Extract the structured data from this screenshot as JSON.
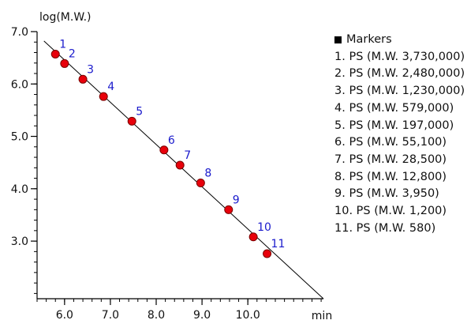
{
  "chart_data": {
    "type": "scatter",
    "ylabel": "log(M.W.)",
    "xlabel": "min",
    "xlim": [
      5.4,
      11.65
    ],
    "ylim": [
      1.9,
      7.0
    ],
    "x_ticks": [
      "6.0",
      "7.0",
      "8.0",
      "9.0",
      "10.0"
    ],
    "y_ticks": [
      "3.0",
      "4.0",
      "5.0",
      "6.0",
      "7.0"
    ],
    "x_tick_values": [
      6,
      7,
      8,
      9,
      10
    ],
    "y_tick_values": [
      3,
      4,
      5,
      6,
      7
    ],
    "x_minor_step": 0.2,
    "y_minor_step": 0.2,
    "points": [
      {
        "label": "1",
        "x": 5.8,
        "y": 6.57
      },
      {
        "label": "2",
        "x": 6.0,
        "y": 6.39
      },
      {
        "label": "3",
        "x": 6.4,
        "y": 6.09
      },
      {
        "label": "4",
        "x": 6.85,
        "y": 5.76
      },
      {
        "label": "5",
        "x": 7.47,
        "y": 5.29
      },
      {
        "label": "6",
        "x": 8.17,
        "y": 4.74
      },
      {
        "label": "7",
        "x": 8.52,
        "y": 4.45
      },
      {
        "label": "8",
        "x": 8.97,
        "y": 4.11
      },
      {
        "label": "9",
        "x": 9.58,
        "y": 3.6
      },
      {
        "label": "10",
        "x": 10.12,
        "y": 3.08
      },
      {
        "label": "11",
        "x": 10.42,
        "y": 2.76
      }
    ],
    "fit_line": {
      "x": [
        5.55,
        11.65
      ],
      "y": [
        6.82,
        1.9
      ]
    },
    "legend_position": "right",
    "grid": false
  },
  "legend": {
    "title": "Markers",
    "items": [
      "1. PS (M.W. 3,730,000)",
      "2. PS (M.W. 2,480,000)",
      "3. PS (M.W. 1,230,000)",
      "4. PS (M.W. 579,000)",
      "5. PS (M.W. 197,000)",
      "6. PS (M.W. 55,100)",
      "7. PS (M.W. 28,500)",
      "8. PS (M.W. 12,800)",
      "9. PS (M.W. 3,950)",
      "10. PS (M.W. 1,200)",
      "11. PS (M.W. 580)"
    ]
  },
  "colors": {
    "marker_fill": "#e8000b",
    "marker_stroke": "#7a0000",
    "point_label": "#1a1acc",
    "axis": "#000000"
  }
}
